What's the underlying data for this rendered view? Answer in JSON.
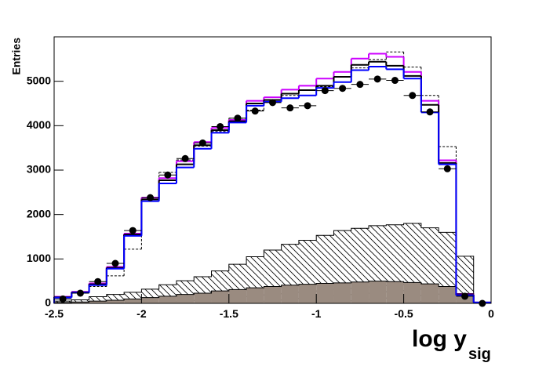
{
  "chart_data": {
    "type": "histogram",
    "y_label": "Entries",
    "x_label": "log y",
    "x_label_sub": "sig",
    "bins": [
      -2.5,
      -2.4,
      -2.3,
      -2.2,
      -2.1,
      -2.0,
      -1.9,
      -1.8,
      -1.7,
      -1.6,
      -1.5,
      -1.4,
      -1.3,
      -1.2,
      -1.1,
      -1.0,
      -0.9,
      -0.8,
      -0.7,
      -0.6,
      -0.5,
      -0.4,
      -0.3,
      -0.2,
      -0.1,
      0
    ],
    "xlim": [
      -2.5,
      0
    ],
    "ylim": [
      0,
      6000
    ],
    "xticks": [
      -2.5,
      -2,
      -1.5,
      -1,
      -0.5,
      0
    ],
    "yticks": [
      0,
      1000,
      2000,
      3000,
      4000,
      5000
    ],
    "series": [
      {
        "style": "hatched",
        "color": "#000000",
        "values": [
          50,
          80,
          150,
          200,
          250,
          320,
          420,
          510,
          600,
          730,
          880,
          1050,
          1200,
          1330,
          1420,
          1530,
          1640,
          1690,
          1750,
          1770,
          1800,
          1700,
          1600,
          1060,
          0
        ]
      },
      {
        "style": "filled",
        "color": "#9a8b80",
        "values": [
          20,
          30,
          50,
          70,
          100,
          130,
          160,
          200,
          230,
          280,
          310,
          350,
          380,
          410,
          430,
          450,
          460,
          480,
          500,
          490,
          470,
          440,
          380,
          220,
          0
        ]
      },
      {
        "style": "dashed",
        "color": "#000000",
        "values": [
          150,
          230,
          380,
          620,
          1220,
          2300,
          2950,
          3230,
          3540,
          3870,
          4170,
          4350,
          4580,
          4680,
          4800,
          4880,
          4980,
          5300,
          5490,
          5660,
          5320,
          4680,
          3530,
          200,
          20
        ]
      },
      {
        "style": "step",
        "color": "#cc00ff",
        "values": [
          150,
          260,
          450,
          820,
          1570,
          2380,
          2820,
          3200,
          3630,
          3950,
          4130,
          4560,
          4640,
          4810,
          4900,
          5060,
          5210,
          5510,
          5620,
          5550,
          5210,
          4560,
          3220,
          200,
          20
        ]
      },
      {
        "style": "step",
        "color": "#000000",
        "values": [
          140,
          250,
          430,
          800,
          1550,
          2340,
          2770,
          3130,
          3560,
          3900,
          4100,
          4500,
          4580,
          4720,
          4800,
          4900,
          5100,
          5370,
          5440,
          5350,
          5120,
          4470,
          3160,
          190,
          20
        ]
      },
      {
        "style": "step",
        "color": "#0000ff",
        "values": [
          130,
          240,
          410,
          780,
          1520,
          2300,
          2700,
          3060,
          3480,
          3840,
          4070,
          4450,
          4540,
          4620,
          4680,
          4850,
          4980,
          5250,
          5330,
          5270,
          5060,
          4300,
          3130,
          180,
          20
        ]
      },
      {
        "style": "points",
        "color": "#000000",
        "values": [
          100,
          230,
          490,
          900,
          1640,
          2380,
          2890,
          3260,
          3610,
          3980,
          4170,
          4330,
          4520,
          4400,
          4450,
          4790,
          4840,
          4930,
          5050,
          5020,
          4680,
          4310,
          3030,
          160,
          0
        ]
      }
    ]
  }
}
